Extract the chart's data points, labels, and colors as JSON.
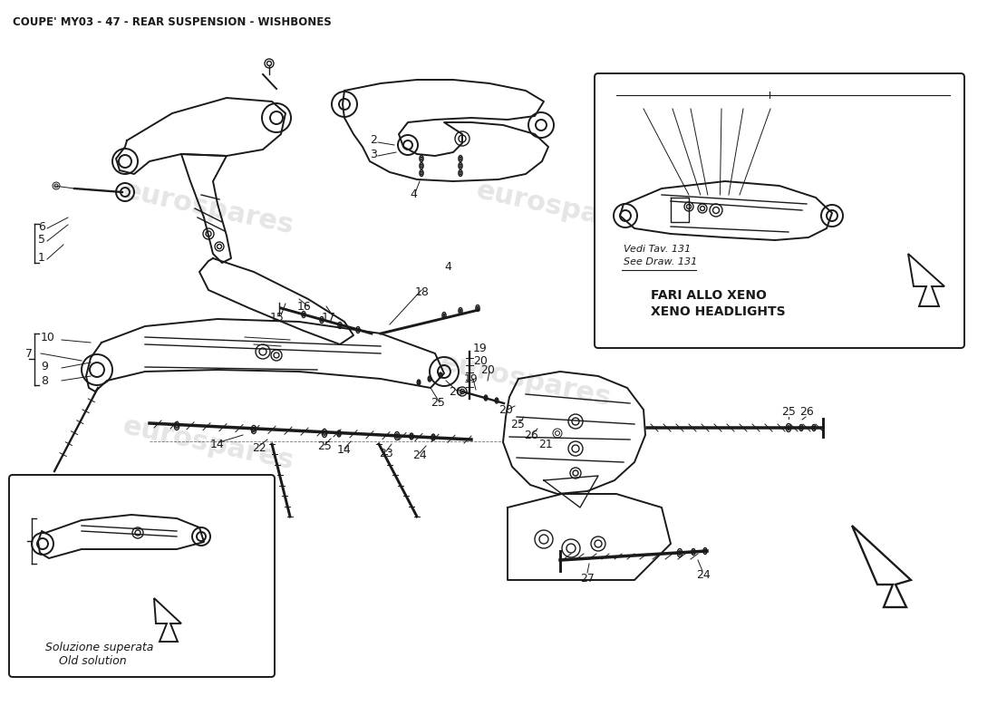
{
  "title": "COUPE' MY03 - 47 - REAR SUSPENSION - WISHBONES",
  "background_color": "#ffffff",
  "title_fontsize": 8.5,
  "title_color": "#1a1a1a",
  "figsize": [
    11.0,
    8.0
  ],
  "dpi": 100,
  "watermark_text": "eurospares",
  "inset1_label1": "Soluzione superata",
  "inset1_label2": "Old solution",
  "inset2_label1": "FARI ALLO XENO",
  "inset2_label2": "XENO HEADLIGHTS",
  "inset2_note1": "Vedi Tav. 131",
  "inset2_note2": "See Draw. 131"
}
